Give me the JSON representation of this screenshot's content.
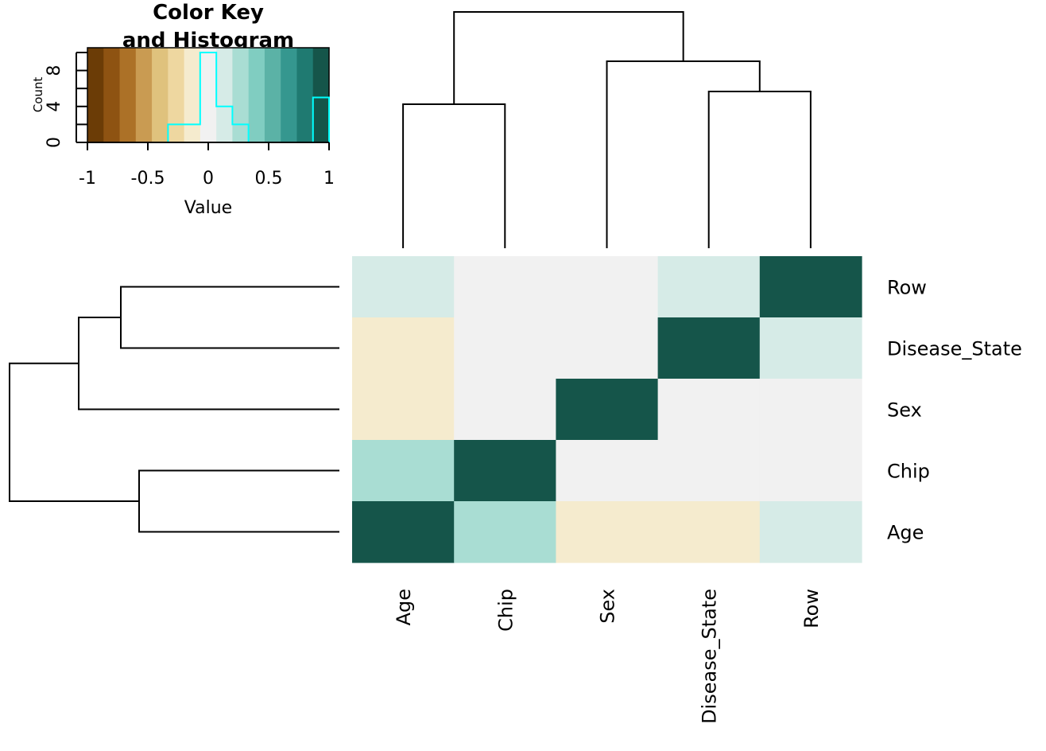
{
  "chart_data": [
    {
      "type": "heatmap",
      "rows": [
        "Row",
        "Disease_State",
        "Sex",
        "Chip",
        "Age"
      ],
      "columns": [
        "Age",
        "Chip",
        "Sex",
        "Disease_State",
        "Row"
      ],
      "values": [
        [
          0.1,
          0.0,
          0.0,
          0.1,
          1.0
        ],
        [
          -0.1,
          0.0,
          0.0,
          1.0,
          0.1
        ],
        [
          -0.2,
          0.0,
          1.0,
          0.0,
          0.0
        ],
        [
          0.2,
          1.0,
          0.0,
          0.0,
          0.0
        ],
        [
          1.0,
          0.2,
          -0.2,
          -0.1,
          0.1
        ]
      ],
      "color_scale": {
        "breaks": [
          -1,
          1
        ],
        "colors": [
          "#6b3c06",
          "#8e5312",
          "#ac7127",
          "#c99b52",
          "#dfc27d",
          "#eed7a0",
          "#f5ebce",
          "#f1f1f1",
          "#d6ebe7",
          "#a9ddd3",
          "#80cdc1",
          "#5bb2a6",
          "#35978f",
          "#1f7a71",
          "#15554a"
        ]
      },
      "dendrogram_rows": {
        "merges": [
          [
            "Row",
            "Disease_State"
          ],
          [
            "Chip",
            "Age"
          ],
          [
            "Row+Disease_State",
            "Sex"
          ],
          [
            "all"
          ]
        ]
      },
      "dendrogram_columns": {
        "merges": [
          [
            "Disease_State",
            "Row"
          ],
          [
            "Age",
            "Chip"
          ],
          [
            "Sex",
            "Disease_State+Row"
          ],
          [
            "all"
          ]
        ]
      }
    },
    {
      "type": "bar",
      "title": "Color Key\nand Histogram",
      "xlabel": "Value",
      "ylabel": "Count",
      "xlim": [
        -1,
        1
      ],
      "ylim": [
        0,
        10
      ],
      "x_ticks": [
        "-1",
        "-0.5",
        "0",
        "0.5",
        "1"
      ],
      "y_ticks": [
        "0",
        "4",
        "8"
      ],
      "histogram_bins": [
        -1,
        -0.867,
        -0.733,
        -0.6,
        -0.467,
        -0.333,
        -0.2,
        -0.067,
        0.067,
        0.2,
        0.333,
        0.467,
        0.6,
        0.733,
        0.867,
        1
      ],
      "histogram_counts": [
        0,
        0,
        0,
        0,
        0,
        2,
        2,
        10,
        4,
        2,
        0,
        0,
        0,
        0,
        5
      ]
    }
  ],
  "labels": {
    "key_title_line1": "Color Key",
    "key_title_line2": "and Histogram",
    "key_xlabel": "Value",
    "key_ylabel": "Count"
  },
  "colors": {
    "histogram_line": "#00ffff",
    "dendrogram": "#000000"
  }
}
